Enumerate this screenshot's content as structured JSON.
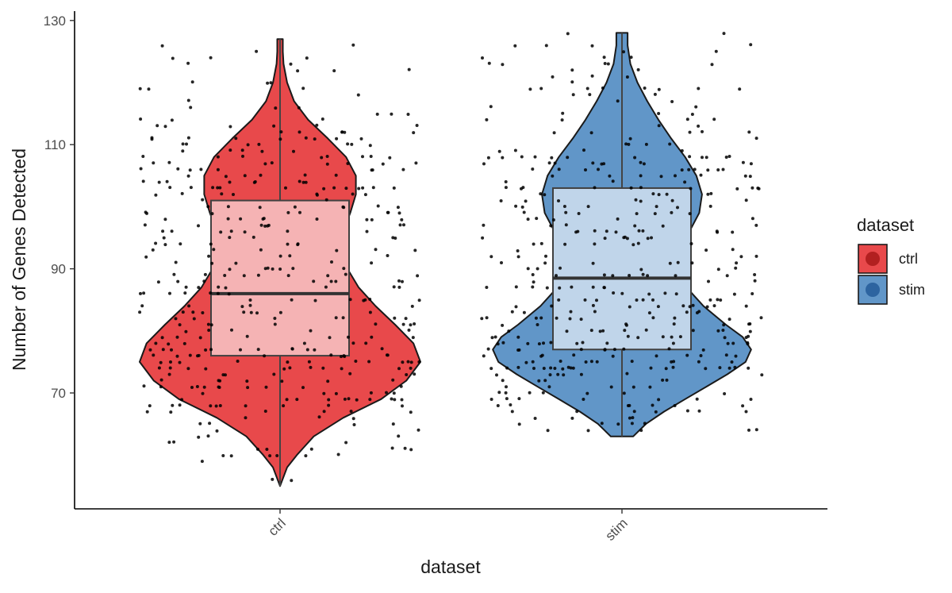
{
  "chart_data": {
    "type": "violin",
    "xlabel": "dataset",
    "ylabel": "Number of Genes Detected",
    "categories": [
      "ctrl",
      "stim"
    ],
    "y_ticks": [
      70,
      90,
      110,
      130
    ],
    "ylim": [
      51,
      131
    ],
    "grid": false,
    "legend": {
      "title": "dataset",
      "placement": "right",
      "entries": [
        {
          "label": "ctrl",
          "fill": "#e8494b",
          "dot": "#b22020"
        },
        {
          "label": "stim",
          "fill": "#6196c8",
          "dot": "#2d64a0"
        }
      ]
    },
    "colors": {
      "ctrl": {
        "violin": "#e8494b",
        "box": "#f5b3b4",
        "points": "#000000"
      },
      "stim": {
        "violin": "#6196c8",
        "box": "#c0d5ea",
        "points": "#000000"
      }
    },
    "groups": [
      {
        "name": "ctrl",
        "min": 55,
        "max": 127,
        "box": {
          "q1": 76,
          "median": 86,
          "q3": 101
        },
        "density": [
          [
            55,
            0.0
          ],
          [
            58,
            0.05
          ],
          [
            60,
            0.12
          ],
          [
            63,
            0.24
          ],
          [
            66,
            0.45
          ],
          [
            69,
            0.72
          ],
          [
            72,
            0.9
          ],
          [
            75,
            1.0
          ],
          [
            78,
            0.95
          ],
          [
            81,
            0.82
          ],
          [
            84,
            0.68
          ],
          [
            87,
            0.56
          ],
          [
            90,
            0.48
          ],
          [
            93,
            0.44
          ],
          [
            96,
            0.45
          ],
          [
            99,
            0.5
          ],
          [
            102,
            0.54
          ],
          [
            105,
            0.54
          ],
          [
            108,
            0.47
          ],
          [
            111,
            0.34
          ],
          [
            114,
            0.2
          ],
          [
            117,
            0.1
          ],
          [
            120,
            0.05
          ],
          [
            123,
            0.025
          ],
          [
            125,
            0.02
          ],
          [
            127,
            0.02
          ]
        ]
      },
      {
        "name": "stim",
        "min": 63,
        "max": 128,
        "box": {
          "q1": 77,
          "median": 88.5,
          "q3": 103
        },
        "density": [
          [
            63,
            0.08
          ],
          [
            65,
            0.17
          ],
          [
            67,
            0.3
          ],
          [
            69,
            0.45
          ],
          [
            71,
            0.6
          ],
          [
            73,
            0.75
          ],
          [
            75,
            0.88
          ],
          [
            77,
            0.92
          ],
          [
            79,
            0.86
          ],
          [
            81,
            0.74
          ],
          [
            84,
            0.58
          ],
          [
            87,
            0.46
          ],
          [
            90,
            0.42
          ],
          [
            93,
            0.43
          ],
          [
            96,
            0.48
          ],
          [
            99,
            0.55
          ],
          [
            102,
            0.57
          ],
          [
            105,
            0.53
          ],
          [
            108,
            0.45
          ],
          [
            111,
            0.35
          ],
          [
            114,
            0.26
          ],
          [
            117,
            0.18
          ],
          [
            120,
            0.11
          ],
          [
            123,
            0.06
          ],
          [
            126,
            0.04
          ],
          [
            128,
            0.04
          ]
        ]
      }
    ]
  }
}
